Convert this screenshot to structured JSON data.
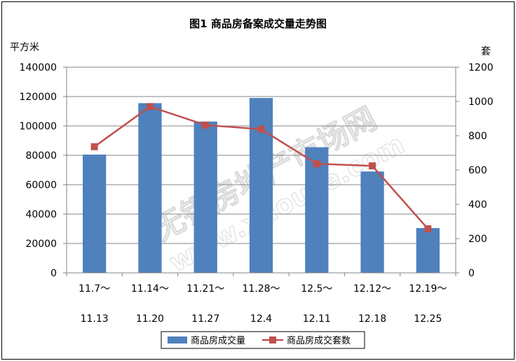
{
  "chart_data": {
    "type": "bar",
    "title": "图1    商品房备案成交量走势图",
    "left_unit": "平方米",
    "right_unit": "套",
    "categories": [
      {
        "line1": "11.7～",
        "line2": "11.13"
      },
      {
        "line1": "11.14～",
        "line2": "11.20"
      },
      {
        "line1": "11.21～",
        "line2": "11.27"
      },
      {
        "line1": "11.28～",
        "line2": "12.4"
      },
      {
        "line1": "12.5～",
        "line2": "12.11"
      },
      {
        "line1": "12.12～",
        "line2": "12.18"
      },
      {
        "line1": "12.19～",
        "line2": "12.25"
      }
    ],
    "series": [
      {
        "name": "商品房成交量",
        "type": "bar",
        "axis": "left",
        "color": "#4f81bd",
        "values": [
          80500,
          115500,
          103000,
          119000,
          85500,
          69000,
          30500
        ]
      },
      {
        "name": "商品房成交套数",
        "type": "line",
        "axis": "right",
        "color": "#c0504d",
        "values": [
          736,
          970,
          862,
          838,
          636,
          624,
          257
        ]
      }
    ],
    "left_axis": {
      "min": 0,
      "max": 140000,
      "step": 20000
    },
    "right_axis": {
      "min": 0,
      "max": 1200,
      "step": 200
    },
    "grid": true,
    "legend_position": "bottom",
    "watermark": "无锡房地产市场网 www.xhouse.com"
  }
}
